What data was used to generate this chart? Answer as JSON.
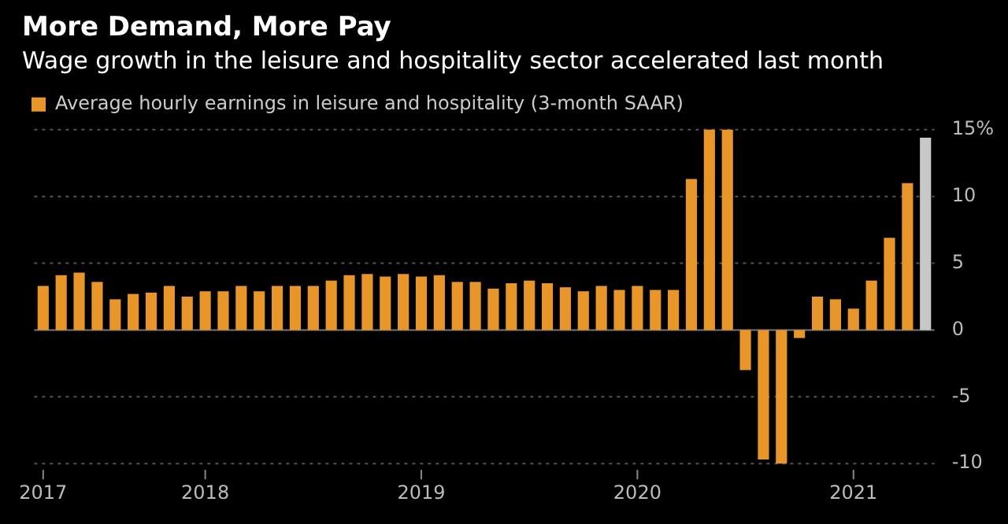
{
  "chart_data": {
    "type": "bar",
    "title": "More Demand, More Pay",
    "subtitle": "Wage growth in the leisure and hospitality sector accelerated last month",
    "categories": [
      "2017",
      null,
      null,
      null,
      null,
      null,
      null,
      null,
      null,
      "2018",
      null,
      null,
      null,
      null,
      null,
      null,
      null,
      null,
      null,
      null,
      null,
      "2019",
      null,
      null,
      null,
      null,
      null,
      null,
      null,
      null,
      null,
      null,
      null,
      "2020",
      null,
      null,
      null,
      null,
      null,
      null,
      null,
      null,
      null,
      null,
      null,
      "2021",
      null,
      null,
      null,
      null
    ],
    "series": [
      {
        "name": "Average hourly earnings in leisure and hospitality (3-month SAAR)",
        "color": "#e8952a",
        "values": [
          3.3,
          4.1,
          4.3,
          3.6,
          2.3,
          2.7,
          2.8,
          3.3,
          2.5,
          2.9,
          2.9,
          3.3,
          2.9,
          3.3,
          3.3,
          3.3,
          3.7,
          4.1,
          4.2,
          4.0,
          4.2,
          4.0,
          4.1,
          3.6,
          3.6,
          3.1,
          3.5,
          3.7,
          3.5,
          3.2,
          2.9,
          3.3,
          3.0,
          3.3,
          3.0,
          3.0,
          11.3,
          15.0,
          15.0,
          -3.0,
          -9.7,
          -10.0,
          -0.6,
          2.5,
          2.3,
          1.6,
          3.7,
          6.9,
          11.0,
          14.4
        ],
        "colors": [
          "#e8952a",
          "#e8952a",
          "#e8952a",
          "#e8952a",
          "#e8952a",
          "#e8952a",
          "#e8952a",
          "#e8952a",
          "#e8952a",
          "#e8952a",
          "#e8952a",
          "#e8952a",
          "#e8952a",
          "#e8952a",
          "#e8952a",
          "#e8952a",
          "#e8952a",
          "#e8952a",
          "#e8952a",
          "#e8952a",
          "#e8952a",
          "#e8952a",
          "#e8952a",
          "#e8952a",
          "#e8952a",
          "#e8952a",
          "#e8952a",
          "#e8952a",
          "#e8952a",
          "#e8952a",
          "#e8952a",
          "#e8952a",
          "#e8952a",
          "#e8952a",
          "#e8952a",
          "#e8952a",
          "#e8952a",
          "#e8952a",
          "#e8952a",
          "#e8952a",
          "#e8952a",
          "#e8952a",
          "#e8952a",
          "#e8952a",
          "#e8952a",
          "#e8952a",
          "#e8952a",
          "#e8952a",
          "#e8952a",
          "#c8c8c8"
        ]
      }
    ],
    "ylim": [
      -10,
      15
    ],
    "yticks": [
      {
        "value": 15,
        "label": "15%"
      },
      10,
      5,
      0,
      -5,
      -10
    ],
    "grid": "y",
    "legend": "top left"
  }
}
